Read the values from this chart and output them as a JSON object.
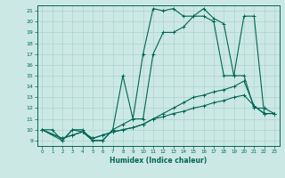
{
  "xlabel": "Humidex (Indice chaleur)",
  "bg_color": "#cce8e4",
  "grid_color": "#aad4cc",
  "line_color": "#006655",
  "xlim": [
    -0.5,
    23.5
  ],
  "ylim": [
    8.5,
    21.5
  ],
  "xticks": [
    0,
    1,
    2,
    3,
    4,
    5,
    6,
    7,
    8,
    9,
    10,
    11,
    12,
    13,
    14,
    15,
    16,
    17,
    18,
    19,
    20,
    21,
    22,
    23
  ],
  "yticks": [
    9,
    10,
    11,
    12,
    13,
    14,
    15,
    16,
    17,
    18,
    19,
    20,
    21
  ],
  "lines": [
    {
      "x": [
        0,
        1,
        2,
        3,
        4,
        5,
        6,
        7,
        8,
        9,
        10,
        11,
        12,
        13,
        14,
        15,
        16,
        17,
        18,
        19,
        20,
        21,
        22,
        23
      ],
      "y": [
        10,
        10,
        9,
        10,
        10,
        9,
        9,
        10,
        15,
        11,
        17,
        21.2,
        21,
        21.2,
        20.5,
        20.5,
        21.2,
        20.3,
        19.8,
        15,
        20.5,
        20.5,
        11.5,
        11.5
      ]
    },
    {
      "x": [
        0,
        2,
        3,
        4,
        5,
        6,
        7,
        8,
        9,
        10,
        11,
        12,
        13,
        14,
        15,
        16,
        17,
        18,
        19,
        20,
        21,
        22,
        23
      ],
      "y": [
        10,
        9,
        10,
        9.8,
        9,
        9,
        10,
        10.5,
        11,
        11,
        17,
        19,
        19,
        19.5,
        20.5,
        20.5,
        20,
        15,
        15,
        15,
        12,
        12,
        11.5
      ]
    },
    {
      "x": [
        0,
        2,
        3,
        4,
        5,
        6,
        7,
        8,
        9,
        10,
        11,
        12,
        13,
        14,
        15,
        16,
        17,
        18,
        19,
        20,
        21,
        22,
        23
      ],
      "y": [
        10,
        9.2,
        9.5,
        9.8,
        9.2,
        9.5,
        9.8,
        10,
        10.2,
        10.5,
        11,
        11.5,
        12,
        12.5,
        13,
        13.2,
        13.5,
        13.7,
        14,
        14.5,
        12.2,
        11.5,
        11.5
      ]
    },
    {
      "x": [
        0,
        2,
        3,
        4,
        5,
        6,
        7,
        8,
        9,
        10,
        11,
        12,
        13,
        14,
        15,
        16,
        17,
        18,
        19,
        20,
        21,
        22,
        23
      ],
      "y": [
        10,
        9.2,
        9.5,
        9.8,
        9.2,
        9.5,
        9.8,
        10,
        10.2,
        10.5,
        11,
        11.2,
        11.5,
        11.7,
        12,
        12.2,
        12.5,
        12.7,
        13,
        13.2,
        12.2,
        11.5,
        11.5
      ]
    }
  ]
}
